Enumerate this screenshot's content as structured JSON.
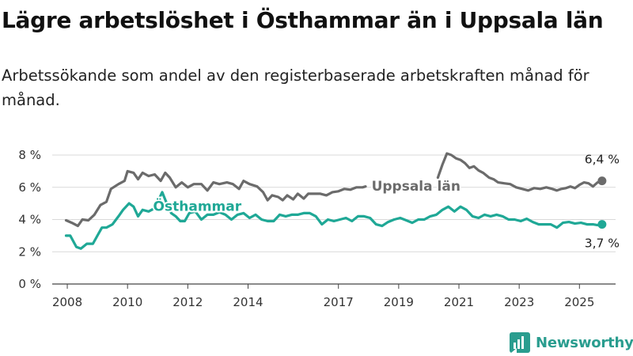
{
  "title": "Lägre arbetslöshet i Östhammar än i Uppsala län",
  "subtitle": "Arbetssökande som andel av den registerbaserade arbetskraften månad för månad.",
  "brand": {
    "name": "Newsworthy",
    "icon": "newsworthy-logo-icon",
    "color": "#2a9d8f"
  },
  "chart_data": {
    "type": "line",
    "xlim": [
      2007.5,
      2026.2
    ],
    "ylim": [
      0,
      8
    ],
    "grid": true,
    "yticks": [
      {
        "value": 0,
        "label": "0 %"
      },
      {
        "value": 2,
        "label": "2 %"
      },
      {
        "value": 4,
        "label": "4 %"
      },
      {
        "value": 6,
        "label": "6 %"
      },
      {
        "value": 8,
        "label": "8 %"
      }
    ],
    "xticks": [
      {
        "value": 2008,
        "label": "2008"
      },
      {
        "value": 2010,
        "label": "2010"
      },
      {
        "value": 2012,
        "label": "2012"
      },
      {
        "value": 2014,
        "label": "2014"
      },
      {
        "value": 2017,
        "label": "2017"
      },
      {
        "value": 2019,
        "label": "2019"
      },
      {
        "value": 2021,
        "label": "2021"
      },
      {
        "value": 2023,
        "label": "2023"
      },
      {
        "value": 2025,
        "label": "2025"
      }
    ],
    "series": [
      {
        "name": "Uppsala län",
        "color": "#6b6b6b",
        "end_label": "6,4 %",
        "label_value": [
          2018.1,
          5.8
        ],
        "segments": [
          [
            [
              2007.96,
              3.95
            ],
            [
              2008.15,
              3.8
            ],
            [
              2008.35,
              3.6
            ],
            [
              2008.5,
              4.0
            ],
            [
              2008.7,
              3.95
            ],
            [
              2008.9,
              4.3
            ],
            [
              2009.1,
              4.9
            ],
            [
              2009.3,
              5.1
            ],
            [
              2009.45,
              5.9
            ],
            [
              2009.7,
              6.2
            ],
            [
              2009.9,
              6.4
            ],
            [
              2010.0,
              7.0
            ],
            [
              2010.2,
              6.9
            ],
            [
              2010.35,
              6.5
            ],
            [
              2010.5,
              6.9
            ],
            [
              2010.7,
              6.7
            ],
            [
              2010.9,
              6.8
            ],
            [
              2011.1,
              6.4
            ],
            [
              2011.25,
              6.9
            ],
            [
              2011.4,
              6.6
            ],
            [
              2011.6,
              6.0
            ],
            [
              2011.8,
              6.3
            ],
            [
              2012.0,
              6.0
            ],
            [
              2012.2,
              6.2
            ],
            [
              2012.45,
              6.2
            ],
            [
              2012.65,
              5.8
            ],
            [
              2012.85,
              6.3
            ],
            [
              2013.05,
              6.2
            ],
            [
              2013.3,
              6.3
            ],
            [
              2013.5,
              6.2
            ],
            [
              2013.7,
              5.9
            ],
            [
              2013.85,
              6.4
            ],
            [
              2014.05,
              6.2
            ],
            [
              2014.3,
              6.05
            ],
            [
              2014.5,
              5.7
            ],
            [
              2014.65,
              5.2
            ],
            [
              2014.8,
              5.5
            ],
            [
              2015.0,
              5.4
            ],
            [
              2015.15,
              5.2
            ],
            [
              2015.3,
              5.5
            ],
            [
              2015.5,
              5.25
            ],
            [
              2015.65,
              5.6
            ],
            [
              2015.85,
              5.3
            ],
            [
              2016.0,
              5.6
            ],
            [
              2016.2,
              5.6
            ],
            [
              2016.4,
              5.6
            ],
            [
              2016.6,
              5.5
            ],
            [
              2016.8,
              5.7
            ],
            [
              2017.0,
              5.75
            ],
            [
              2017.2,
              5.9
            ],
            [
              2017.4,
              5.85
            ],
            [
              2017.6,
              6.0
            ],
            [
              2017.8,
              6.0
            ],
            [
              2017.9,
              6.05
            ]
          ],
          [
            [
              2020.3,
              6.6
            ],
            [
              2020.45,
              7.4
            ],
            [
              2020.6,
              8.1
            ],
            [
              2020.75,
              8.0
            ],
            [
              2020.9,
              7.8
            ],
            [
              2021.05,
              7.7
            ],
            [
              2021.2,
              7.5
            ],
            [
              2021.35,
              7.2
            ],
            [
              2021.5,
              7.3
            ],
            [
              2021.65,
              7.05
            ],
            [
              2021.8,
              6.9
            ],
            [
              2022.0,
              6.6
            ],
            [
              2022.15,
              6.5
            ],
            [
              2022.3,
              6.3
            ],
            [
              2022.5,
              6.25
            ],
            [
              2022.7,
              6.2
            ],
            [
              2022.9,
              6.0
            ],
            [
              2023.1,
              5.9
            ],
            [
              2023.3,
              5.8
            ],
            [
              2023.5,
              5.95
            ],
            [
              2023.7,
              5.9
            ],
            [
              2023.9,
              6.0
            ],
            [
              2024.1,
              5.9
            ],
            [
              2024.25,
              5.8
            ],
            [
              2024.4,
              5.9
            ],
            [
              2024.55,
              5.95
            ],
            [
              2024.7,
              6.05
            ],
            [
              2024.85,
              5.95
            ],
            [
              2025.0,
              6.15
            ],
            [
              2025.15,
              6.3
            ],
            [
              2025.3,
              6.25
            ],
            [
              2025.45,
              6.05
            ],
            [
              2025.6,
              6.3
            ],
            [
              2025.75,
              6.4
            ]
          ]
        ]
      },
      {
        "name": "Östhammar",
        "color": "#1fa896",
        "end_label": "3,7 %",
        "label_value": [
          2010.85,
          4.55
        ],
        "segments": [
          [
            [
              2007.96,
              3.0
            ],
            [
              2008.1,
              3.0
            ],
            [
              2008.3,
              2.3
            ],
            [
              2008.45,
              2.2
            ],
            [
              2008.65,
              2.5
            ],
            [
              2008.85,
              2.5
            ],
            [
              2009.0,
              3.0
            ],
            [
              2009.15,
              3.5
            ],
            [
              2009.3,
              3.5
            ],
            [
              2009.5,
              3.7
            ],
            [
              2009.7,
              4.2
            ],
            [
              2009.85,
              4.6
            ],
            [
              2010.05,
              5.0
            ],
            [
              2010.2,
              4.8
            ],
            [
              2010.35,
              4.2
            ],
            [
              2010.5,
              4.6
            ],
            [
              2010.7,
              4.5
            ],
            [
              2010.9,
              4.7
            ],
            [
              2011.05,
              5.3
            ],
            [
              2011.15,
              5.7
            ],
            [
              2011.3,
              5.0
            ],
            [
              2011.45,
              4.4
            ],
            [
              2011.6,
              4.2
            ],
            [
              2011.75,
              3.9
            ],
            [
              2011.9,
              3.9
            ],
            [
              2012.05,
              4.4
            ],
            [
              2012.25,
              4.5
            ],
            [
              2012.45,
              4.0
            ],
            [
              2012.65,
              4.3
            ],
            [
              2012.85,
              4.3
            ],
            [
              2013.05,
              4.45
            ],
            [
              2013.25,
              4.3
            ],
            [
              2013.45,
              4.0
            ],
            [
              2013.65,
              4.3
            ],
            [
              2013.85,
              4.4
            ],
            [
              2014.05,
              4.1
            ],
            [
              2014.25,
              4.3
            ],
            [
              2014.45,
              4.0
            ],
            [
              2014.65,
              3.9
            ],
            [
              2014.85,
              3.9
            ],
            [
              2015.05,
              4.3
            ],
            [
              2015.25,
              4.2
            ],
            [
              2015.45,
              4.3
            ],
            [
              2015.65,
              4.3
            ],
            [
              2015.85,
              4.4
            ],
            [
              2016.05,
              4.4
            ],
            [
              2016.25,
              4.2
            ],
            [
              2016.45,
              3.7
            ],
            [
              2016.65,
              4.0
            ],
            [
              2016.85,
              3.9
            ],
            [
              2017.05,
              4.0
            ],
            [
              2017.25,
              4.1
            ],
            [
              2017.45,
              3.9
            ],
            [
              2017.65,
              4.2
            ],
            [
              2017.85,
              4.2
            ],
            [
              2018.05,
              4.1
            ],
            [
              2018.25,
              3.7
            ],
            [
              2018.45,
              3.6
            ],
            [
              2018.65,
              3.85
            ],
            [
              2018.85,
              4.0
            ],
            [
              2019.05,
              4.1
            ],
            [
              2019.25,
              3.95
            ],
            [
              2019.45,
              3.8
            ],
            [
              2019.65,
              4.0
            ],
            [
              2019.85,
              4.0
            ],
            [
              2020.05,
              4.2
            ],
            [
              2020.25,
              4.3
            ],
            [
              2020.45,
              4.6
            ],
            [
              2020.65,
              4.8
            ],
            [
              2020.85,
              4.5
            ],
            [
              2021.05,
              4.8
            ],
            [
              2021.25,
              4.6
            ],
            [
              2021.45,
              4.2
            ],
            [
              2021.65,
              4.1
            ],
            [
              2021.85,
              4.3
            ],
            [
              2022.05,
              4.2
            ],
            [
              2022.25,
              4.3
            ],
            [
              2022.45,
              4.2
            ],
            [
              2022.65,
              4.0
            ],
            [
              2022.85,
              4.0
            ],
            [
              2023.05,
              3.9
            ],
            [
              2023.25,
              4.05
            ],
            [
              2023.45,
              3.85
            ],
            [
              2023.65,
              3.7
            ],
            [
              2023.85,
              3.7
            ],
            [
              2024.05,
              3.7
            ],
            [
              2024.25,
              3.5
            ],
            [
              2024.45,
              3.8
            ],
            [
              2024.65,
              3.85
            ],
            [
              2024.85,
              3.75
            ],
            [
              2025.05,
              3.8
            ],
            [
              2025.25,
              3.7
            ],
            [
              2025.45,
              3.7
            ],
            [
              2025.6,
              3.65
            ],
            [
              2025.75,
              3.7
            ]
          ]
        ]
      }
    ]
  }
}
